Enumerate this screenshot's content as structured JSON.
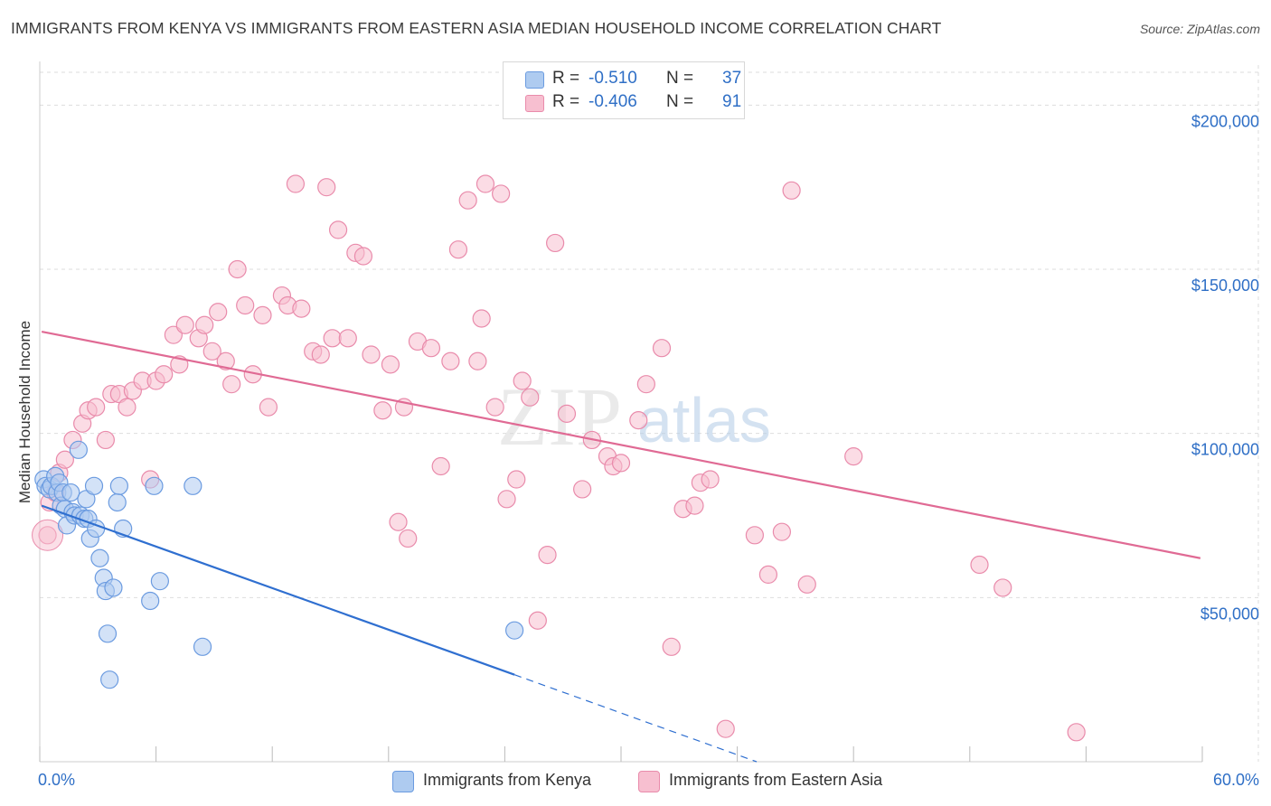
{
  "title": "IMMIGRANTS FROM KENYA VS IMMIGRANTS FROM EASTERN ASIA MEDIAN HOUSEHOLD INCOME CORRELATION CHART",
  "source": "Source: ZipAtlas.com",
  "colors": {
    "kenya_fill": "#aecbf0",
    "kenya_stroke": "#6b9be0",
    "kenya_line": "#2f6fd0",
    "asia_fill": "#f7bfd0",
    "asia_stroke": "#e98bab",
    "asia_line": "#e06a94",
    "tick_label": "#2f6fc6",
    "grid": "#dddddd"
  },
  "stats": {
    "kenya": {
      "r_label": "R =",
      "r_value": "-0.510",
      "n_label": "N =",
      "n_value": "37"
    },
    "asia": {
      "r_label": "R =",
      "r_value": "-0.406",
      "n_label": "N =",
      "n_value": "91"
    }
  },
  "watermark": {
    "zip": "ZIP",
    "atlas": "atlas"
  },
  "chart_data": {
    "type": "scatter",
    "title": "IMMIGRANTS FROM KENYA VS IMMIGRANTS FROM EASTERN ASIA MEDIAN HOUSEHOLD INCOME CORRELATION CHART",
    "xlabel": "",
    "ylabel": "Median Household Income",
    "xlim": [
      0,
      60
    ],
    "ylim": [
      0,
      210000
    ],
    "x_tick_labels": [
      {
        "value": 0,
        "label": "0.0%"
      },
      {
        "value": 60,
        "label": "60.0%"
      }
    ],
    "y_tick_labels": [
      {
        "value": 50000,
        "label": "$50,000"
      },
      {
        "value": 100000,
        "label": "$100,000"
      },
      {
        "value": 150000,
        "label": "$150,000"
      },
      {
        "value": 200000,
        "label": "$200,000"
      }
    ],
    "grid": true,
    "legend_position": "bottom-center",
    "series": [
      {
        "name": "Immigrants from Kenya",
        "r": -0.51,
        "n": 37,
        "trend": {
          "x": [
            0.1,
            24.5
          ],
          "y": [
            78000,
            26500
          ],
          "dashed_to": {
            "x": 37,
            "y": 0
          }
        },
        "points": [
          [
            0.2,
            86000
          ],
          [
            0.3,
            84000
          ],
          [
            0.5,
            83000
          ],
          [
            0.6,
            84000
          ],
          [
            0.8,
            87000
          ],
          [
            0.9,
            82000
          ],
          [
            1.0,
            85000
          ],
          [
            1.1,
            78000
          ],
          [
            1.2,
            82000
          ],
          [
            1.3,
            77000
          ],
          [
            1.4,
            72000
          ],
          [
            1.6,
            82000
          ],
          [
            1.7,
            76000
          ],
          [
            1.8,
            75000
          ],
          [
            2.0,
            95000
          ],
          [
            2.1,
            75000
          ],
          [
            2.3,
            74000
          ],
          [
            2.4,
            80000
          ],
          [
            2.5,
            74000
          ],
          [
            2.6,
            68000
          ],
          [
            2.8,
            84000
          ],
          [
            2.9,
            71000
          ],
          [
            3.1,
            62000
          ],
          [
            3.3,
            56000
          ],
          [
            3.4,
            52000
          ],
          [
            3.5,
            39000
          ],
          [
            3.6,
            25000
          ],
          [
            3.8,
            53000
          ],
          [
            4.0,
            79000
          ],
          [
            4.1,
            84000
          ],
          [
            4.3,
            71000
          ],
          [
            5.7,
            49000
          ],
          [
            5.9,
            84000
          ],
          [
            6.2,
            55000
          ],
          [
            7.9,
            84000
          ],
          [
            8.4,
            35000
          ],
          [
            24.5,
            40000
          ]
        ]
      },
      {
        "name": "Immigrants from Eastern Asia",
        "r": -0.406,
        "n": 91,
        "trend": {
          "x": [
            0.1,
            59.9
          ],
          "y": [
            131000,
            62000
          ]
        },
        "points": [
          [
            0.4,
            69000
          ],
          [
            0.5,
            79000
          ],
          [
            0.8,
            82000
          ],
          [
            1.0,
            88000
          ],
          [
            1.3,
            92000
          ],
          [
            1.7,
            98000
          ],
          [
            2.2,
            103000
          ],
          [
            2.5,
            107000
          ],
          [
            2.9,
            108000
          ],
          [
            3.4,
            98000
          ],
          [
            3.7,
            112000
          ],
          [
            4.1,
            112000
          ],
          [
            4.5,
            108000
          ],
          [
            4.8,
            113000
          ],
          [
            5.3,
            116000
          ],
          [
            5.7,
            86000
          ],
          [
            6.0,
            116000
          ],
          [
            6.4,
            118000
          ],
          [
            6.9,
            130000
          ],
          [
            7.2,
            121000
          ],
          [
            7.5,
            133000
          ],
          [
            8.2,
            129000
          ],
          [
            8.5,
            133000
          ],
          [
            8.9,
            125000
          ],
          [
            9.2,
            137000
          ],
          [
            9.6,
            122000
          ],
          [
            9.9,
            115000
          ],
          [
            10.2,
            150000
          ],
          [
            10.6,
            139000
          ],
          [
            11.0,
            118000
          ],
          [
            11.5,
            136000
          ],
          [
            11.8,
            108000
          ],
          [
            12.5,
            142000
          ],
          [
            12.8,
            139000
          ],
          [
            13.2,
            176000
          ],
          [
            13.5,
            138000
          ],
          [
            14.1,
            125000
          ],
          [
            14.5,
            124000
          ],
          [
            14.8,
            175000
          ],
          [
            15.1,
            129000
          ],
          [
            15.4,
            162000
          ],
          [
            15.9,
            129000
          ],
          [
            16.3,
            155000
          ],
          [
            16.7,
            154000
          ],
          [
            17.1,
            124000
          ],
          [
            17.7,
            107000
          ],
          [
            18.1,
            121000
          ],
          [
            18.5,
            73000
          ],
          [
            18.8,
            108000
          ],
          [
            19.0,
            68000
          ],
          [
            19.5,
            128000
          ],
          [
            20.2,
            126000
          ],
          [
            20.7,
            90000
          ],
          [
            21.2,
            122000
          ],
          [
            21.6,
            156000
          ],
          [
            22.1,
            171000
          ],
          [
            22.6,
            122000
          ],
          [
            22.8,
            135000
          ],
          [
            23.0,
            176000
          ],
          [
            23.5,
            108000
          ],
          [
            23.8,
            173000
          ],
          [
            24.1,
            80000
          ],
          [
            24.6,
            86000
          ],
          [
            24.9,
            116000
          ],
          [
            25.3,
            111000
          ],
          [
            25.7,
            43000
          ],
          [
            26.2,
            63000
          ],
          [
            26.6,
            158000
          ],
          [
            27.2,
            106000
          ],
          [
            28.0,
            83000
          ],
          [
            28.5,
            98000
          ],
          [
            29.3,
            93000
          ],
          [
            29.6,
            90000
          ],
          [
            30.0,
            91000
          ],
          [
            30.9,
            104000
          ],
          [
            31.3,
            115000
          ],
          [
            32.1,
            126000
          ],
          [
            32.6,
            35000
          ],
          [
            33.2,
            77000
          ],
          [
            33.8,
            78000
          ],
          [
            34.1,
            85000
          ],
          [
            34.6,
            86000
          ],
          [
            35.4,
            10000
          ],
          [
            36.9,
            69000
          ],
          [
            37.6,
            57000
          ],
          [
            38.3,
            70000
          ],
          [
            38.8,
            174000
          ],
          [
            39.6,
            54000
          ],
          [
            42.0,
            93000
          ],
          [
            48.5,
            60000
          ],
          [
            49.7,
            53000
          ],
          [
            53.5,
            9000
          ]
        ]
      }
    ]
  }
}
